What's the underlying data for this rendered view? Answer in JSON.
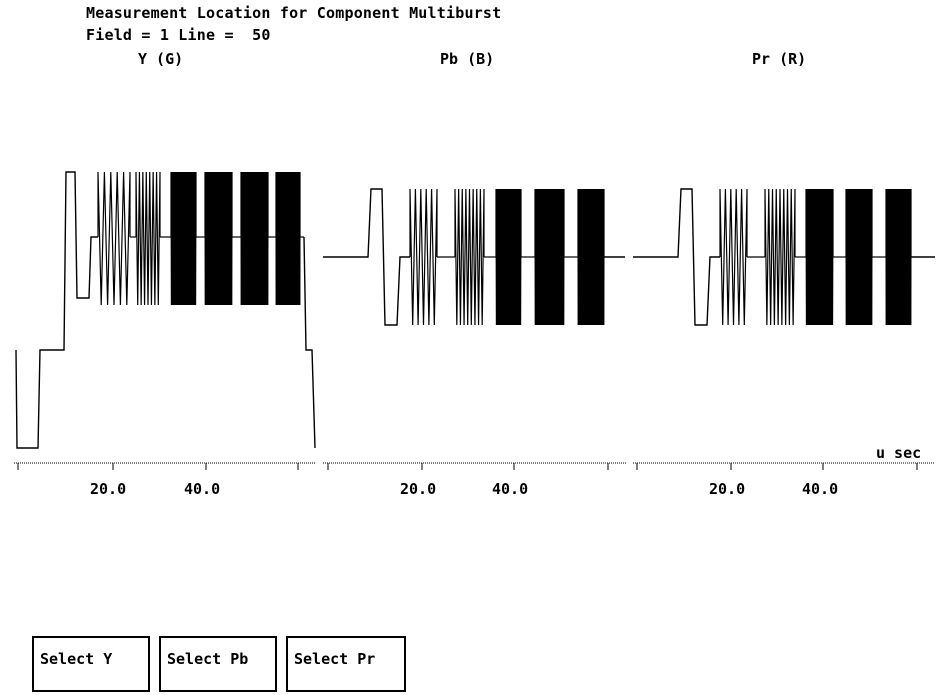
{
  "header": {
    "title": "Measurement Location for Component Multiburst",
    "field_line": "Field = 1 Line =  50"
  },
  "channels": [
    {
      "label": "Y (G)"
    },
    {
      "label": "Pb (B)"
    },
    {
      "label": "Pr (R)"
    }
  ],
  "axis": {
    "unit": "u sec",
    "tick_labels": [
      "20.0",
      "40.0"
    ]
  },
  "buttons": {
    "select_y": "Select Y",
    "select_pb": "Select Pb",
    "select_pr": "Select Pr"
  },
  "colors": {
    "trace": "#000000",
    "background": "#ffffff"
  }
}
